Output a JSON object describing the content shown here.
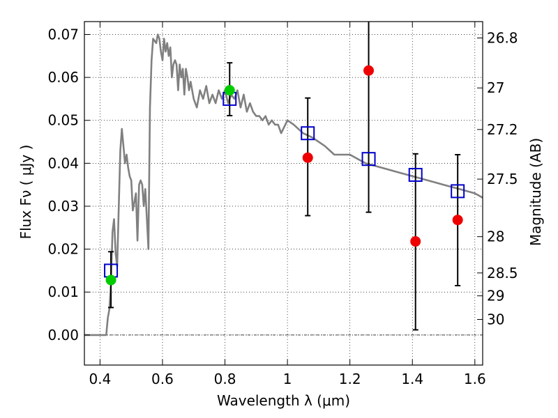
{
  "chart_data": {
    "type": "scatter",
    "title": "",
    "xlabel": "Wavelength  λ (μm)",
    "ylabel": "Flux  Fν  ( μJy )",
    "y2label": "Magnitude (AB)",
    "xlim": [
      0.35,
      1.625
    ],
    "ylim": [
      -0.007,
      0.073
    ],
    "grid": true,
    "x_ticks": [
      0.4,
      0.6,
      0.8,
      1.0,
      1.2,
      1.4,
      1.6
    ],
    "x_tick_labels": [
      "0.4",
      "0.6",
      "0.8",
      "1",
      "1.2",
      "1.4",
      "1.6"
    ],
    "y_ticks": [
      0.0,
      0.01,
      0.02,
      0.03,
      0.04,
      0.05,
      0.06,
      0.07
    ],
    "y_tick_labels": [
      "0.00",
      "0.01",
      "0.02",
      "0.03",
      "0.04",
      "0.05",
      "0.06",
      "0.07"
    ],
    "y2_ticks": [
      26.8,
      27.0,
      27.2,
      27.5,
      28.0,
      28.5,
      29.0,
      30.0
    ],
    "y2_tick_labels": [
      "26.8",
      "27",
      "27.2",
      "27.5",
      "28",
      "28.5",
      "29",
      "30"
    ],
    "series": [
      {
        "kind": "line",
        "color": "#808080",
        "x": [
          0.35,
          0.42,
          0.425,
          0.43,
          0.435,
          0.44,
          0.445,
          0.45,
          0.455,
          0.46,
          0.465,
          0.47,
          0.475,
          0.48,
          0.485,
          0.49,
          0.495,
          0.5,
          0.505,
          0.51,
          0.515,
          0.52,
          0.525,
          0.53,
          0.535,
          0.54,
          0.545,
          0.55,
          0.555,
          0.56,
          0.565,
          0.57,
          0.58,
          0.585,
          0.59,
          0.595,
          0.6,
          0.605,
          0.61,
          0.615,
          0.62,
          0.625,
          0.63,
          0.635,
          0.64,
          0.645,
          0.65,
          0.655,
          0.66,
          0.665,
          0.67,
          0.675,
          0.68,
          0.685,
          0.69,
          0.7,
          0.71,
          0.72,
          0.73,
          0.74,
          0.75,
          0.76,
          0.77,
          0.78,
          0.79,
          0.8,
          0.81,
          0.82,
          0.83,
          0.84,
          0.85,
          0.86,
          0.87,
          0.88,
          0.89,
          0.9,
          0.91,
          0.92,
          0.93,
          0.94,
          0.95,
          0.96,
          0.97,
          0.98,
          1.0,
          1.02,
          1.05,
          1.08,
          1.1,
          1.12,
          1.15,
          1.2,
          1.25,
          1.3,
          1.35,
          1.4,
          1.45,
          1.5,
          1.55,
          1.6,
          1.625
        ],
        "y": [
          0.0,
          0.0,
          0.004,
          0.006,
          0.012,
          0.024,
          0.027,
          0.019,
          0.016,
          0.03,
          0.043,
          0.048,
          0.044,
          0.04,
          0.042,
          0.039,
          0.037,
          0.036,
          0.029,
          0.031,
          0.033,
          0.022,
          0.035,
          0.036,
          0.035,
          0.03,
          0.034,
          0.027,
          0.02,
          0.053,
          0.064,
          0.069,
          0.068,
          0.07,
          0.069,
          0.066,
          0.064,
          0.069,
          0.066,
          0.068,
          0.065,
          0.067,
          0.06,
          0.063,
          0.064,
          0.063,
          0.057,
          0.063,
          0.06,
          0.062,
          0.056,
          0.062,
          0.06,
          0.057,
          0.059,
          0.055,
          0.053,
          0.057,
          0.055,
          0.058,
          0.054,
          0.056,
          0.054,
          0.057,
          0.055,
          0.057,
          0.054,
          0.056,
          0.055,
          0.057,
          0.053,
          0.056,
          0.052,
          0.054,
          0.052,
          0.051,
          0.051,
          0.05,
          0.051,
          0.049,
          0.05,
          0.049,
          0.049,
          0.047,
          0.05,
          0.049,
          0.047,
          0.046,
          0.045,
          0.044,
          0.042,
          0.042,
          0.04,
          0.039,
          0.038,
          0.037,
          0.036,
          0.035,
          0.034,
          0.033,
          0.032
        ]
      },
      {
        "kind": "squares",
        "color": "#0000cc",
        "x": [
          0.435,
          0.815,
          1.065,
          1.26,
          1.41,
          1.545
        ],
        "y": [
          0.015,
          0.055,
          0.047,
          0.041,
          0.0373,
          0.0335
        ]
      },
      {
        "kind": "points",
        "color": "#00cc00",
        "x": [
          0.435,
          0.815
        ],
        "y": [
          0.0128,
          0.057
        ],
        "yerr_low": [
          0.0064,
          0.0511
        ],
        "yerr_high": [
          0.0194,
          0.0634
        ]
      },
      {
        "kind": "points",
        "color": "#ee0000",
        "x": [
          1.065,
          1.26,
          1.41,
          1.545
        ],
        "y": [
          0.0413,
          0.0616,
          0.0218,
          0.0268
        ],
        "yerr_low": [
          0.0278,
          0.0286,
          0.0012,
          0.0115
        ],
        "yerr_high": [
          0.0552,
          0.0735,
          0.0422,
          0.042
        ]
      }
    ]
  }
}
